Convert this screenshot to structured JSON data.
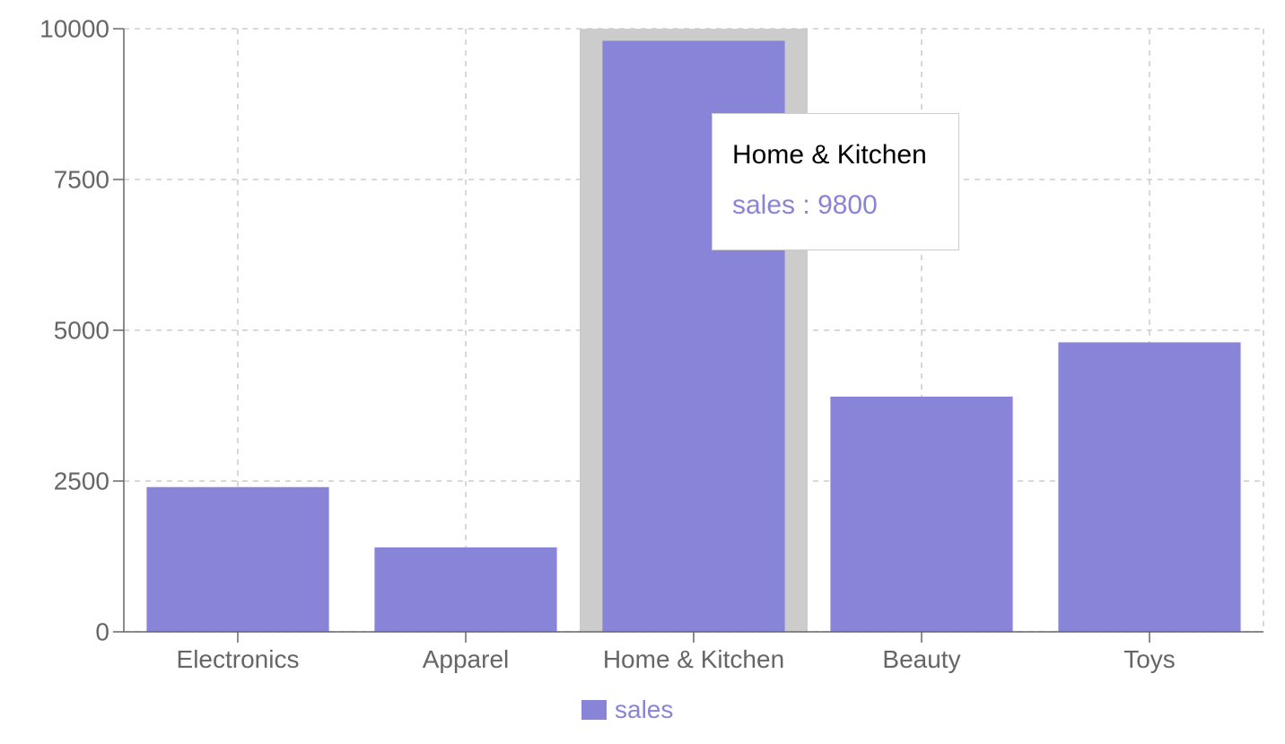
{
  "chart_data": {
    "type": "bar",
    "categories": [
      "Electronics",
      "Apparel",
      "Home & Kitchen",
      "Beauty",
      "Toys"
    ],
    "series": [
      {
        "name": "sales",
        "values": [
          2400,
          1400,
          9800,
          3900,
          4800
        ],
        "color": "#8884d8"
      }
    ],
    "ylim": [
      0,
      10000
    ],
    "yticks": [
      0,
      2500,
      5000,
      7500,
      10000
    ],
    "grid": true,
    "legend_position": "bottom-center",
    "highlighted_category": "Home & Kitchen"
  },
  "tooltip": {
    "title": "Home & Kitchen",
    "series_name": "sales",
    "separator": " : ",
    "value": "9800"
  },
  "colors": {
    "bar": "#8884d8",
    "axis": "#666666",
    "grid": "#cccccc",
    "cursor": "#cccccc"
  }
}
